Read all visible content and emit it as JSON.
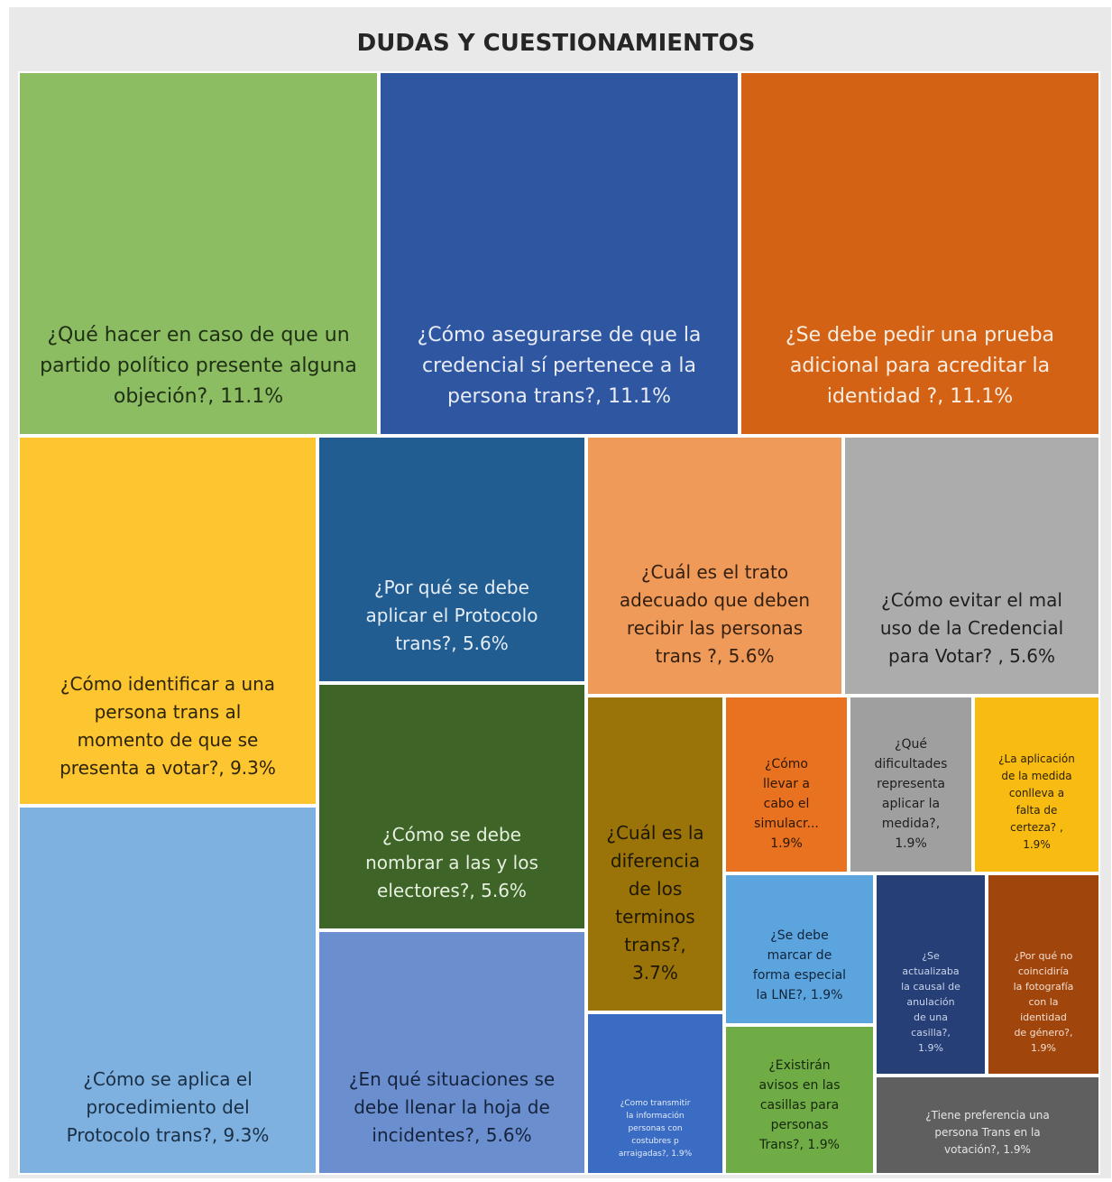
{
  "chart_data": {
    "type": "treemap",
    "title": "DUDAS Y CUESTIONAMIENTOS",
    "items": [
      {
        "label": "¿Qué hacer en caso de que un partido político presente alguna objeción?",
        "value": 11.1,
        "value_label": "11.1%",
        "color": "#8cbd63",
        "text_color": "#1f2f14",
        "display": "¿Qué hacer en caso de que un\npartido político presente alguna\nobjeción?, 11.1%"
      },
      {
        "label": "¿Cómo asegurarse de que la credencial sí pertenece a la persona trans?",
        "value": 11.1,
        "value_label": "11.1%",
        "color": "#2f56a0",
        "text_color": "#e8ecf6",
        "display": "¿Cómo asegurarse de que la\ncredencial sí pertenece a la\npersona trans?, 11.1%"
      },
      {
        "label": "¿Se debe pedir una prueba adicional para acreditar la identidad ?",
        "value": 11.1,
        "value_label": "11.1%",
        "color": "#d46215",
        "text_color": "#fbeee3",
        "display": "¿Se debe pedir una prueba\nadicional para acreditar la\nidentidad ?, 11.1%"
      },
      {
        "label": "¿Cómo identificar a una persona trans al momento de que se presenta a votar?",
        "value": 9.3,
        "value_label": "9.3%",
        "color": "#fdc52f",
        "text_color": "#2d2406",
        "display": "¿Cómo identificar a una\npersona trans al\nmomento de que se\npresenta a votar?, 9.3%"
      },
      {
        "label": "¿Cómo se aplica el procedimiento del Protocolo trans?",
        "value": 9.3,
        "value_label": "9.3%",
        "color": "#7eb0e0",
        "text_color": "#1b2f44",
        "display": "¿Cómo se aplica el\nprocedimiento del\nProtocolo trans?, 9.3%"
      },
      {
        "label": "¿Por qué se debe aplicar el Protocolo trans?",
        "value": 5.6,
        "value_label": "5.6%",
        "color": "#225d92",
        "text_color": "#e5eef7",
        "display": "¿Por qué se debe\naplicar el Protocolo\ntrans?, 5.6%"
      },
      {
        "label": "¿Cómo se debe nombrar a las y los electores?",
        "value": 5.6,
        "value_label": "5.6%",
        "color": "#3e6527",
        "text_color": "#e6efdf",
        "display": "¿Cómo se debe\nnombrar a las y los\nelectores?, 5.6%"
      },
      {
        "label": "¿En qué situaciones se debe llenar la hoja de incidentes?",
        "value": 5.6,
        "value_label": "5.6%",
        "color": "#6b8fce",
        "text_color": "#15233d",
        "display": "¿En qué situaciones se\ndebe llenar la hoja de\nincidentes?, 5.6%"
      },
      {
        "label": "¿Cuál es el trato adecuado que deben recibir las personas trans ?",
        "value": 5.6,
        "value_label": "5.6%",
        "color": "#f09a5a",
        "text_color": "#33200f",
        "display": "¿Cuál es el trato\nadecuado que deben\nrecibir las personas\ntrans ?, 5.6%"
      },
      {
        "label": "¿Cómo evitar el mal uso de la Credencial para Votar? ",
        "value": 5.6,
        "value_label": "5.6%",
        "color": "#acacac",
        "text_color": "#1f1f1f",
        "display": "¿Cómo evitar el mal\nuso de la Credencial\npara Votar? , 5.6%"
      },
      {
        "label": "¿Cuál es la diferencia de los terminos trans?",
        "value": 3.7,
        "value_label": "3.7%",
        "color": "#9a7408",
        "text_color": "#1e1703",
        "display": "¿Cuál es la\ndiferencia\nde los\nterminos\ntrans?,\n3.7%"
      },
      {
        "label": "¿Cómo llevar a cabo el simulacr...",
        "value": 1.9,
        "value_label": "1.9%",
        "color": "#e8721f",
        "text_color": "#2c1605",
        "display": "¿Cómo\nllevar a\ncabo el\nsimulacr...\n1.9%"
      },
      {
        "label": "¿Qué dificultades representa aplicar la medida?",
        "value": 1.9,
        "value_label": "1.9%",
        "color": "#9f9f9f",
        "text_color": "#1f1f1f",
        "display": "¿Qué\ndificultades\nrepresenta\naplicar la\nmedida?,\n1.9%"
      },
      {
        "label": "¿La aplicación de la medida conlleva a falta de certeza? ",
        "value": 1.9,
        "value_label": "1.9%",
        "color": "#f7bb12",
        "text_color": "#2a1f02",
        "display": "¿La aplicación\nde la medida\nconlleva a\nfalta de\ncerteza? ,\n1.9%"
      },
      {
        "label": "¿Se debe marcar de forma especial la LNE?",
        "value": 1.9,
        "value_label": "1.9%",
        "color": "#5ba4dd",
        "text_color": "#10243a",
        "display": "¿Se debe\nmarcar de\nforma especial\nla LNE?, 1.9%"
      },
      {
        "label": "¿Se actualizaba la causal de anulación de una casilla?",
        "value": 1.9,
        "value_label": "1.9%",
        "color": "#263f77",
        "text_color": "#c9d3ea",
        "display": "¿Se\nactualizaba\nla causal de\nanulación\nde una\ncasilla?,\n1.9%"
      },
      {
        "label": "¿Por qué no coincidiría la fotografía con la identidad de género?",
        "value": 1.9,
        "value_label": "1.9%",
        "color": "#a0460c",
        "text_color": "#f3ddd0",
        "display": "¿Por qué no\ncoincidiría\nla fotografía\ncon la\nidentidad\nde género?,\n1.9%"
      },
      {
        "label": "¿Como transmitir la información personas con costubres p arraigadas?",
        "value": 1.9,
        "value_label": "1.9%",
        "color": "#3a6cc4",
        "text_color": "#e4ecfa",
        "display": "¿Como transmitir\nla información\npersonas con\ncostubres p\narraigadas?, 1.9%"
      },
      {
        "label": "¿Existirán avisos en las casillas para personas Trans?",
        "value": 1.9,
        "value_label": "1.9%",
        "color": "#6fac46",
        "text_color": "#17260c",
        "display": "¿Existirán\navisos en las\ncasillas para\npersonas\nTrans?, 1.9%"
      },
      {
        "label": "¿Tiene preferencia una persona Trans en la votación?",
        "value": 1.9,
        "value_label": "1.9%",
        "color": "#5f5f5f",
        "text_color": "#e5e5e5",
        "display": "¿Tiene preferencia una\npersona Trans en la\nvotación?, 1.9%"
      }
    ]
  }
}
